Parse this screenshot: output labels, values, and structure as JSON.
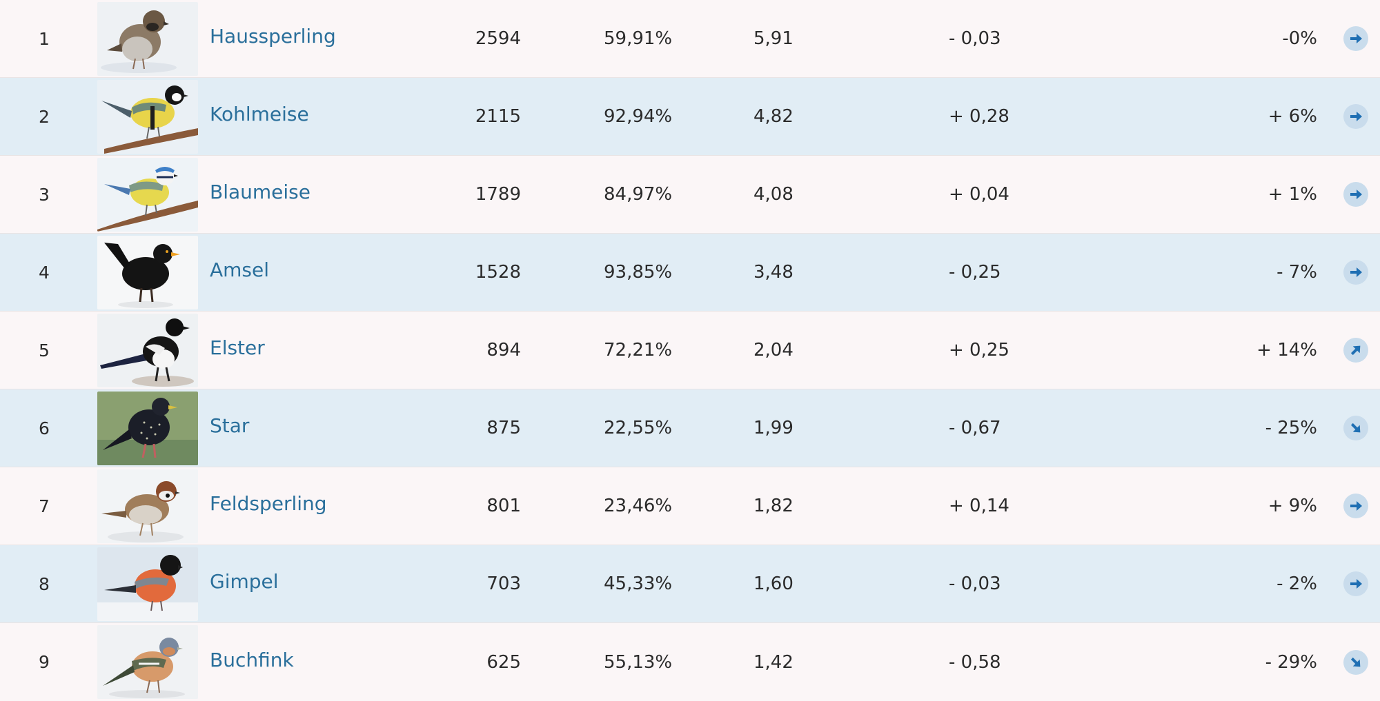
{
  "rows": [
    {
      "rank": "1",
      "name": "Haussperling",
      "count": "2594",
      "percent": "59,91%",
      "avg": "5,91",
      "delta": "- 0,03",
      "trend": "-0%",
      "arrow": "right-arrow-icon",
      "rot": 0
    },
    {
      "rank": "2",
      "name": "Kohlmeise",
      "count": "2115",
      "percent": "92,94%",
      "avg": "4,82",
      "delta": "+ 0,28",
      "trend": "+ 6%",
      "arrow": "right-arrow-icon",
      "rot": 0
    },
    {
      "rank": "3",
      "name": "Blaumeise",
      "count": "1789",
      "percent": "84,97%",
      "avg": "4,08",
      "delta": "+ 0,04",
      "trend": "+ 1%",
      "arrow": "right-arrow-icon",
      "rot": 0
    },
    {
      "rank": "4",
      "name": "Amsel",
      "count": "1528",
      "percent": "93,85%",
      "avg": "3,48",
      "delta": "- 0,25",
      "trend": "- 7%",
      "arrow": "right-arrow-icon",
      "rot": 0
    },
    {
      "rank": "5",
      "name": "Elster",
      "count": "894",
      "percent": "72,21%",
      "avg": "2,04",
      "delta": "+ 0,25",
      "trend": "+ 14%",
      "arrow": "up-right-arrow-icon",
      "rot": -45
    },
    {
      "rank": "6",
      "name": "Star",
      "count": "875",
      "percent": "22,55%",
      "avg": "1,99",
      "delta": "- 0,67",
      "trend": "- 25%",
      "arrow": "down-right-arrow-icon",
      "rot": 45
    },
    {
      "rank": "7",
      "name": "Feldsperling",
      "count": "801",
      "percent": "23,46%",
      "avg": "1,82",
      "delta": "+ 0,14",
      "trend": "+ 9%",
      "arrow": "right-arrow-icon",
      "rot": 0
    },
    {
      "rank": "8",
      "name": "Gimpel",
      "count": "703",
      "percent": "45,33%",
      "avg": "1,60",
      "delta": "- 0,03",
      "trend": "- 2%",
      "arrow": "right-arrow-icon",
      "rot": 0
    },
    {
      "rank": "9",
      "name": "Buchfink",
      "count": "625",
      "percent": "55,13%",
      "avg": "1,42",
      "delta": "- 0,58",
      "trend": "- 29%",
      "arrow": "down-right-arrow-icon",
      "rot": 45
    }
  ],
  "colors": {
    "link": "#2a6f9b",
    "row_light": "#fbf6f7",
    "row_blue": "#e1edf5",
    "trend_button": "#c9dcec",
    "trend_arrow": "#1f6fb3"
  }
}
